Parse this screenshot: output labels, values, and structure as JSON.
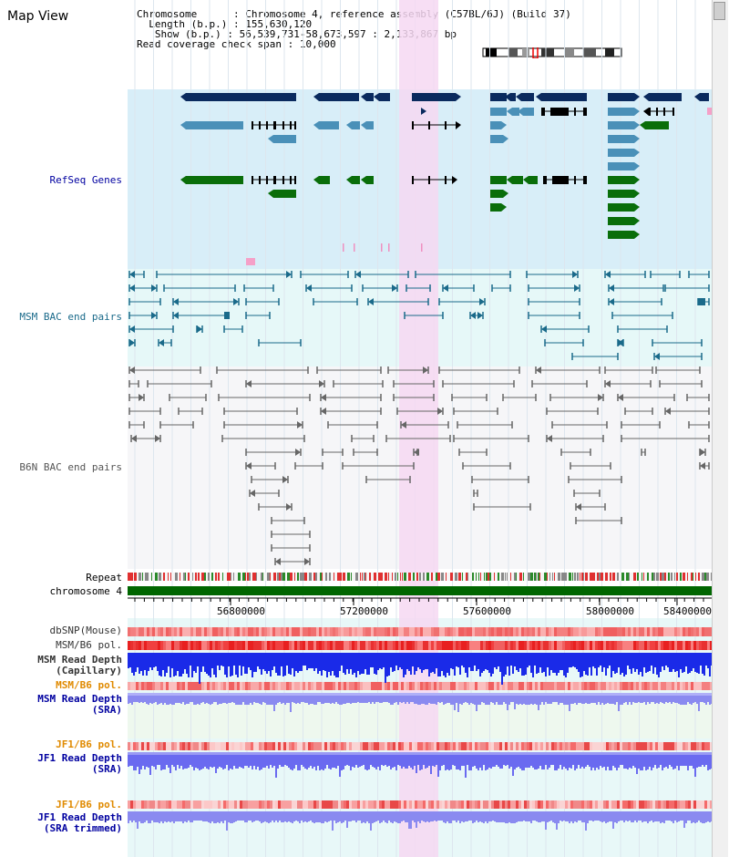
{
  "page": {
    "title": "Map View"
  },
  "header": {
    "chromosome_label": "Chromosome",
    "chromosome_value": "Chromosome 4, reference assembly (C57BL/6J) (Build 37)",
    "length_label": "Length (b.p.)",
    "length_value": "155,630,120",
    "show_label": "Show (b.p.)",
    "show_value": "56,539,731-58,673,597 : 2,133,867 bp",
    "coverage_label": "Read coverage check span",
    "coverage_value": "10,000"
  },
  "tracks": {
    "refseq": "RefSeq Genes",
    "msm_bac": "MSM BAC end pairs",
    "b6n_bac": "B6N BAC end pairs",
    "repeat": "Repeat",
    "chromosome": "chromosome 4",
    "dbsnp": "dbSNP(Mouse)",
    "msm_b6_pol": "MSM/B6 pol.",
    "msm_depth_cap_1": "MSM Read Depth",
    "msm_depth_cap_2": "(Capillary)",
    "msm_b6_pol2": "MSM/B6 pol.",
    "msm_depth_sra_1": "MSM Read Depth",
    "msm_depth_sra_2": "(SRA)",
    "jf1_b6_pol": "JF1/B6 pol.",
    "jf1_depth_1": "JF1 Read Depth",
    "jf1_depth_2": "(SRA)",
    "jf1_b6_pol2": "JF1/B6 pol.",
    "jf1_trim_1": "JF1 Read Depth",
    "jf1_trim_2": "(SRA trimmed)"
  },
  "axis": {
    "ticks": [
      "56800000",
      "57200000",
      "57600000",
      "58000000",
      "58400000"
    ]
  },
  "colors": {
    "refseq_bg": "#d8eef8",
    "msm_bg": "#e6f8f8",
    "b6n_bg": "#f6f6f8",
    "highlight": "#f6d8f2",
    "navy": "#0a2a5e",
    "steel": "#4a90b8",
    "green": "#0a6e0a",
    "teal": "#1a6a8a",
    "gray": "#666666",
    "orange": "#e08a00",
    "blue_label": "#0000a0"
  }
}
